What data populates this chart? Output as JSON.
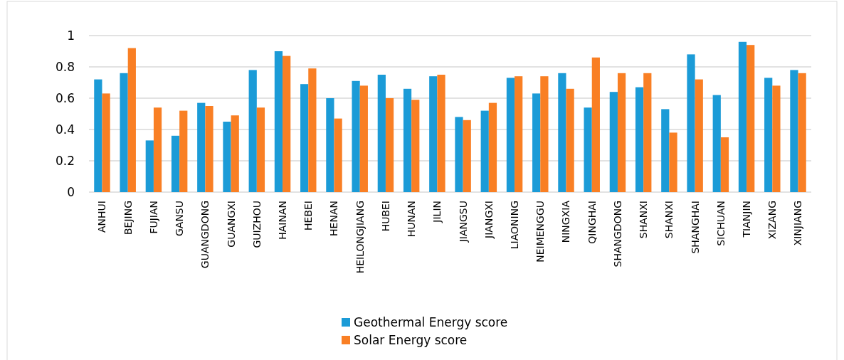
{
  "chart_data": {
    "type": "bar",
    "categories": [
      "ANHUI",
      "BEJING",
      "FUJIAN",
      "GANSU",
      "GUANGDONG",
      "GUANGXI",
      "GUIZHOU",
      "HAINAN",
      "HEBEI",
      "HENAN",
      "HEILONGJIANG",
      "HUBEI",
      "HUNAN",
      "JILIN",
      "JIANGSU",
      "JIANGXI",
      "LIAONING",
      "NEIMENGGU",
      "NINGXIA",
      "QINGHAI",
      "SHANGDONG",
      "SHANXI",
      "SHANXI",
      "SHANGHAI",
      "SICHUAN",
      "TIANJIN",
      "XIZANG",
      "XINJIANG"
    ],
    "series": [
      {
        "name": "Geothermal Energy score",
        "color": "#1b9bd7",
        "values": [
          0.72,
          0.76,
          0.33,
          0.36,
          0.57,
          0.45,
          0.78,
          0.9,
          0.69,
          0.6,
          0.71,
          0.75,
          0.66,
          0.74,
          0.48,
          0.52,
          0.73,
          0.63,
          0.76,
          0.54,
          0.64,
          0.67,
          0.53,
          0.88,
          0.62,
          0.96,
          0.73,
          0.78
        ]
      },
      {
        "name": "Solar Energy score",
        "color": "#f97f24",
        "values": [
          0.63,
          0.92,
          0.54,
          0.52,
          0.55,
          0.49,
          0.54,
          0.87,
          0.79,
          0.47,
          0.68,
          0.6,
          0.59,
          0.75,
          0.46,
          0.57,
          0.74,
          0.74,
          0.66,
          0.86,
          0.76,
          0.76,
          0.38,
          0.72,
          0.35,
          0.94,
          0.68,
          0.76
        ]
      }
    ],
    "ylim": [
      0,
      1
    ],
    "yticks": [
      0,
      0.2,
      0.4,
      0.6,
      0.8,
      1
    ],
    "grid": "y",
    "legend": "bottom"
  }
}
